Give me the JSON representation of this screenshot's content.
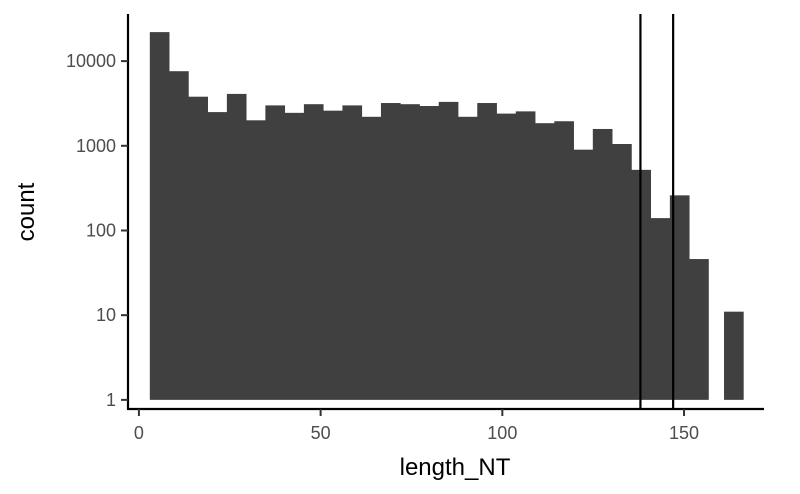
{
  "chart_data": {
    "type": "bar",
    "xlabel": "length_NT",
    "ylabel": "count",
    "yscale": "log10",
    "xlim": [
      -3,
      172
    ],
    "ylim": [
      0.78,
      36000
    ],
    "bin_width": 5.3,
    "bar_color": "#404040",
    "x_ticks": [
      0,
      50,
      100,
      150
    ],
    "x_tick_labels": [
      "0",
      "50",
      "100",
      "150"
    ],
    "y_ticks": [
      1,
      10,
      100,
      1000,
      10000
    ],
    "y_tick_labels": [
      "1",
      "10",
      "100",
      "1000",
      "10000"
    ],
    "bins": [
      {
        "x0": 3.0,
        "x1": 8.3,
        "count": 22000
      },
      {
        "x0": 8.3,
        "x1": 13.6,
        "count": 7600
      },
      {
        "x0": 13.6,
        "x1": 18.9,
        "count": 3800
      },
      {
        "x0": 18.9,
        "x1": 24.2,
        "count": 2500
      },
      {
        "x0": 24.2,
        "x1": 29.5,
        "count": 4100
      },
      {
        "x0": 29.5,
        "x1": 34.8,
        "count": 2000
      },
      {
        "x0": 34.8,
        "x1": 40.1,
        "count": 3000
      },
      {
        "x0": 40.1,
        "x1": 45.4,
        "count": 2450
      },
      {
        "x0": 45.4,
        "x1": 50.7,
        "count": 3100
      },
      {
        "x0": 50.7,
        "x1": 56.0,
        "count": 2600
      },
      {
        "x0": 56.0,
        "x1": 61.3,
        "count": 3000
      },
      {
        "x0": 61.3,
        "x1": 66.6,
        "count": 2200
      },
      {
        "x0": 66.6,
        "x1": 71.9,
        "count": 3200
      },
      {
        "x0": 71.9,
        "x1": 77.2,
        "count": 3100
      },
      {
        "x0": 77.2,
        "x1": 82.5,
        "count": 2950
      },
      {
        "x0": 82.5,
        "x1": 87.8,
        "count": 3300
      },
      {
        "x0": 87.8,
        "x1": 93.1,
        "count": 2200
      },
      {
        "x0": 93.1,
        "x1": 98.4,
        "count": 3200
      },
      {
        "x0": 98.4,
        "x1": 103.7,
        "count": 2400
      },
      {
        "x0": 103.7,
        "x1": 109.0,
        "count": 2550
      },
      {
        "x0": 109.0,
        "x1": 114.3,
        "count": 1850
      },
      {
        "x0": 114.3,
        "x1": 119.6,
        "count": 1950
      },
      {
        "x0": 119.6,
        "x1": 124.9,
        "count": 900
      },
      {
        "x0": 124.9,
        "x1": 130.2,
        "count": 1580
      },
      {
        "x0": 130.2,
        "x1": 135.5,
        "count": 1050
      },
      {
        "x0": 135.5,
        "x1": 140.8,
        "count": 520
      },
      {
        "x0": 140.8,
        "x1": 146.1,
        "count": 140
      },
      {
        "x0": 146.1,
        "x1": 151.4,
        "count": 260
      },
      {
        "x0": 151.4,
        "x1": 156.7,
        "count": 46
      },
      {
        "x0": 161.0,
        "x1": 166.3,
        "count": 11
      }
    ],
    "vlines": [
      138,
      147
    ],
    "grid": false,
    "legend": "none"
  }
}
